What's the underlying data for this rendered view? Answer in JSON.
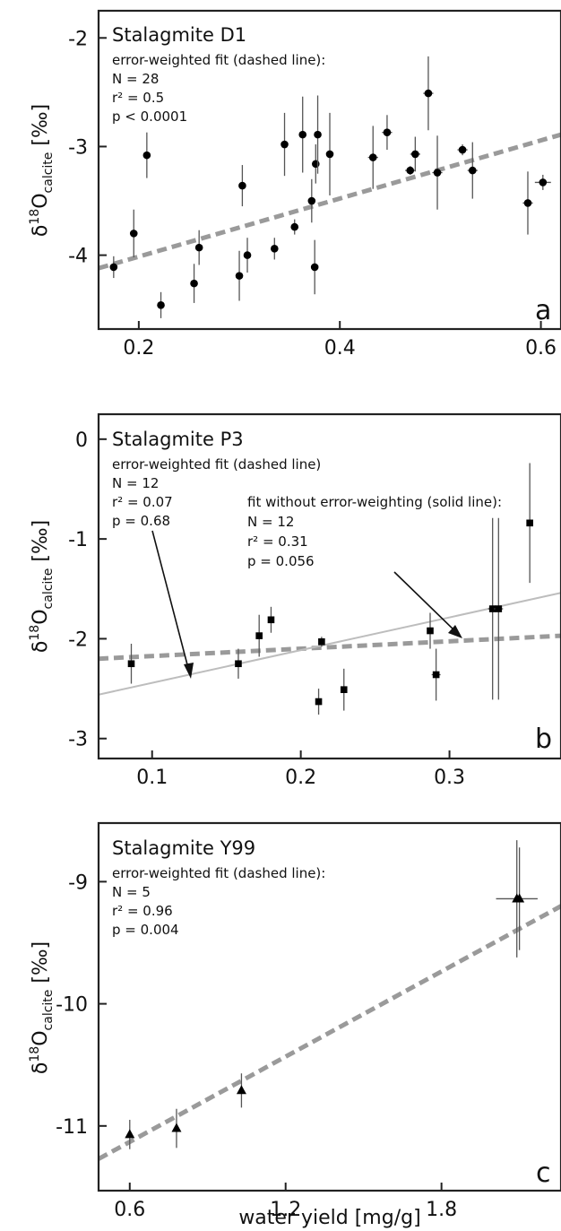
{
  "chart_data": [
    {
      "type": "scatter",
      "panel": "a",
      "title": "Stalagmite D1",
      "annotation_lines": [
        "error-weighted fit (dashed line):",
        "N = 28",
        "r² = 0.5",
        "p < 0.0001"
      ],
      "ylabel": "δ18Ocalcite [‰]",
      "xlim": [
        0.16,
        0.62
      ],
      "ylim": [
        -4.68,
        -1.75
      ],
      "xticks": [
        0.2,
        0.4,
        0.6
      ],
      "xtick_labels": [
        "0.2",
        "0.4",
        "0.6"
      ],
      "yticks": [
        -2,
        -3,
        -4
      ],
      "ytick_labels": [
        "-2",
        "-3",
        "-4"
      ],
      "marker": "circle",
      "points": [
        {
          "x": 0.175,
          "y": -4.11,
          "yerr": 0.1,
          "xerr": 0
        },
        {
          "x": 0.195,
          "y": -3.8,
          "yerr": 0.22,
          "xerr": 0
        },
        {
          "x": 0.208,
          "y": -3.08,
          "yerr": 0.21,
          "xerr": 0
        },
        {
          "x": 0.222,
          "y": -4.46,
          "yerr": 0.12,
          "xerr": 0
        },
        {
          "x": 0.255,
          "y": -4.26,
          "yerr": 0.18,
          "xerr": 0
        },
        {
          "x": 0.26,
          "y": -3.93,
          "yerr": 0.16,
          "xerr": 0
        },
        {
          "x": 0.3,
          "y": -4.19,
          "yerr": 0.23,
          "xerr": 0
        },
        {
          "x": 0.303,
          "y": -3.36,
          "yerr": 0.19,
          "xerr": 0
        },
        {
          "x": 0.308,
          "y": -4.0,
          "yerr": 0.16,
          "xerr": 0
        },
        {
          "x": 0.335,
          "y": -3.94,
          "yerr": 0.1,
          "xerr": 0
        },
        {
          "x": 0.345,
          "y": -2.98,
          "yerr": 0.29,
          "xerr": 0
        },
        {
          "x": 0.355,
          "y": -3.74,
          "yerr": 0.07,
          "xerr": 0
        },
        {
          "x": 0.363,
          "y": -2.89,
          "yerr": 0.35,
          "xerr": 0
        },
        {
          "x": 0.372,
          "y": -3.5,
          "yerr": 0.2,
          "xerr": 0
        },
        {
          "x": 0.375,
          "y": -4.11,
          "yerr": 0.25,
          "xerr": 0
        },
        {
          "x": 0.376,
          "y": -3.16,
          "yerr": 0.18,
          "xerr": 0
        },
        {
          "x": 0.378,
          "y": -2.89,
          "yerr": 0.36,
          "xerr": 0
        },
        {
          "x": 0.39,
          "y": -3.07,
          "yerr": 0.38,
          "xerr": 0
        },
        {
          "x": 0.433,
          "y": -3.1,
          "yerr": 0.29,
          "xerr": 0.005
        },
        {
          "x": 0.447,
          "y": -2.87,
          "yerr": 0.16,
          "xerr": 0.005
        },
        {
          "x": 0.47,
          "y": -3.22,
          "yerr": 0.04,
          "xerr": 0.005
        },
        {
          "x": 0.475,
          "y": -3.07,
          "yerr": 0.16,
          "xerr": 0.005
        },
        {
          "x": 0.488,
          "y": -2.51,
          "yerr": 0.34,
          "xerr": 0.005
        },
        {
          "x": 0.497,
          "y": -3.24,
          "yerr": 0.34,
          "xerr": 0.005
        },
        {
          "x": 0.522,
          "y": -3.03,
          "yerr": 0.05,
          "xerr": 0.005
        },
        {
          "x": 0.532,
          "y": -3.22,
          "yerr": 0.26,
          "xerr": 0.005
        },
        {
          "x": 0.587,
          "y": -3.52,
          "yerr": 0.29,
          "xerr": 0.005
        },
        {
          "x": 0.602,
          "y": -3.33,
          "yerr": 0.07,
          "xerr": 0.008
        }
      ],
      "fits": [
        {
          "style": "dashed",
          "x": [
            0.16,
            0.62
          ],
          "y": [
            -4.12,
            -2.89
          ]
        }
      ]
    },
    {
      "type": "scatter",
      "panel": "b",
      "title": "Stalagmite P3",
      "annotation_lines": [
        "error-weighted fit (dashed line)",
        "N = 12",
        "r² = 0.07",
        "p = 0.68"
      ],
      "annotation2_lines": [
        "fit without error-weighting (solid line):",
        "N = 12",
        "r² = 0.31",
        "p = 0.056"
      ],
      "ylabel": "δ18Ocalcite [‰]",
      "xlim": [
        0.064,
        0.375
      ],
      "ylim": [
        -3.2,
        0.25
      ],
      "xticks": [
        0.1,
        0.2,
        0.3
      ],
      "xtick_labels": [
        "0.1",
        "0.2",
        "0.3"
      ],
      "yticks": [
        0,
        -1,
        -2,
        -3
      ],
      "ytick_labels": [
        "0",
        "-1",
        "-2",
        "-3"
      ],
      "marker": "square",
      "points": [
        {
          "x": 0.086,
          "y": -2.25,
          "yerr": 0.2,
          "xerr": 0
        },
        {
          "x": 0.158,
          "y": -2.25,
          "yerr": 0.15,
          "xerr": 0
        },
        {
          "x": 0.172,
          "y": -1.97,
          "yerr": 0.21,
          "xerr": 0
        },
        {
          "x": 0.18,
          "y": -1.81,
          "yerr": 0.13,
          "xerr": 0
        },
        {
          "x": 0.212,
          "y": -2.63,
          "yerr": 0.13,
          "xerr": 0
        },
        {
          "x": 0.214,
          "y": -2.03,
          "yerr": 0.05,
          "xerr": 0
        },
        {
          "x": 0.229,
          "y": -2.51,
          "yerr": 0.21,
          "xerr": 0
        },
        {
          "x": 0.287,
          "y": -1.92,
          "yerr": 0.18,
          "xerr": 0
        },
        {
          "x": 0.291,
          "y": -2.36,
          "yerr": 0.26,
          "xerr": 0.003
        },
        {
          "x": 0.329,
          "y": -1.7,
          "yerr": 0.91,
          "xerr": 0.003
        },
        {
          "x": 0.333,
          "y": -1.7,
          "yerr": 0.91,
          "xerr": 0.003
        },
        {
          "x": 0.354,
          "y": -0.84,
          "yerr": 0.6,
          "xerr": 0
        }
      ],
      "fits": [
        {
          "style": "dashed",
          "x": [
            0.064,
            0.375
          ],
          "y": [
            -2.2,
            -1.97
          ]
        },
        {
          "style": "solid",
          "x": [
            0.064,
            0.375
          ],
          "y": [
            -2.56,
            -1.54
          ]
        }
      ]
    },
    {
      "type": "scatter",
      "panel": "c",
      "title": "Stalagmite Y99",
      "annotation_lines": [
        "error-weighted fit (dashed line):",
        "N = 5",
        "r² = 0.96",
        "p = 0.004"
      ],
      "ylabel": "δ18Ocalcite [‰]",
      "xlabel": "water yield [mg/g]",
      "xlim": [
        0.48,
        2.26
      ],
      "ylim": [
        -11.53,
        -8.52
      ],
      "xticks": [
        0.6,
        1.2,
        1.8
      ],
      "xtick_labels": [
        "0.6",
        "1.2",
        "1.8"
      ],
      "yticks": [
        -9,
        -10,
        -11
      ],
      "ytick_labels": [
        "-9",
        "-10",
        "-11"
      ],
      "marker": "triangle",
      "points": [
        {
          "x": 0.6,
          "y": -11.07,
          "yerr": 0.12,
          "xerr": 0
        },
        {
          "x": 0.78,
          "y": -11.02,
          "yerr": 0.16,
          "xerr": 0
        },
        {
          "x": 1.03,
          "y": -10.71,
          "yerr": 0.14,
          "xerr": 0
        },
        {
          "x": 2.09,
          "y": -9.14,
          "yerr": 0.48,
          "xerr": 0.08
        },
        {
          "x": 2.1,
          "y": -9.14,
          "yerr": 0.42,
          "xerr": 0
        }
      ],
      "fits": [
        {
          "style": "dashed",
          "x": [
            0.48,
            2.26
          ],
          "y": [
            -11.27,
            -9.2
          ]
        }
      ]
    }
  ]
}
